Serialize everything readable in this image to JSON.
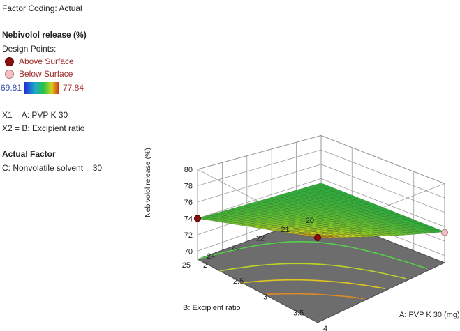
{
  "panel": {
    "factor_coding": "Factor Coding: Actual",
    "response_title": "Nebivolol release (%)",
    "design_points_label": "Design Points:",
    "above_label": "Above Surface",
    "below_label": "Below Surface",
    "color_min": "69.81",
    "color_max": "77.84",
    "x1_line": "X1 = A: PVP K 30",
    "x2_line": "X2 = B: Excipient ratio",
    "actual_factor_title": "Actual Factor",
    "actual_factor_line": "C: Nonvolatile solvent  = 30"
  },
  "colors": {
    "above": "#8b0d0d",
    "below": "#f3bfc2",
    "floor": "#6d6d6d",
    "cold": "#1f2fd6",
    "hot": "#d52a14"
  },
  "chart_data": {
    "type": "surface3d",
    "xlabel": "A: PVP K 30 (mg)",
    "ylabel": "B: Excipient ratio",
    "zlabel": "Nebivolol release (%)",
    "xlim": [
      2,
      4
    ],
    "ylim": [
      20,
      25
    ],
    "zlim": [
      69,
      80
    ],
    "x_ticks": [
      "2",
      "2.5",
      "3",
      "3.5",
      "4"
    ],
    "y_ticks": [
      "20",
      "21",
      "22",
      "23",
      "24",
      "25"
    ],
    "z_ticks": [
      "70",
      "72",
      "74",
      "76",
      "78",
      "80"
    ],
    "surface_corners": {
      "x2_y20": 73.4,
      "x4_y20": 73.3,
      "x2_y25": 74.0,
      "x4_y25": 79.4
    },
    "design_points": [
      {
        "x": 2,
        "y": 25,
        "z": 74.0,
        "position": "above"
      },
      {
        "x": 4,
        "y": 25,
        "z": 79.4,
        "position": "above"
      },
      {
        "x": 4,
        "y": 20,
        "z": 73.2,
        "position": "below"
      }
    ]
  }
}
